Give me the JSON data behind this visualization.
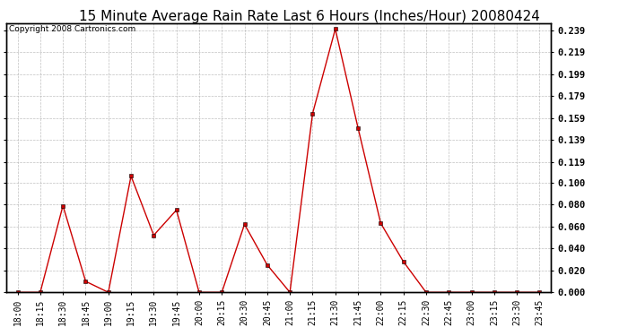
{
  "title": "15 Minute Average Rain Rate Last 6 Hours (Inches/Hour) 20080424",
  "copyright": "Copyright 2008 Cartronics.com",
  "x_labels": [
    "18:00",
    "18:15",
    "18:30",
    "18:45",
    "19:00",
    "19:15",
    "19:30",
    "19:45",
    "20:00",
    "20:15",
    "20:30",
    "20:45",
    "21:00",
    "21:15",
    "21:30",
    "21:45",
    "22:00",
    "22:15",
    "22:30",
    "22:45",
    "23:00",
    "23:15",
    "23:30",
    "23:45"
  ],
  "y_values": [
    0.0,
    0.0,
    0.079,
    0.01,
    0.0,
    0.106,
    0.052,
    0.075,
    0.0,
    0.0,
    0.062,
    0.025,
    0.0,
    0.163,
    0.24,
    0.15,
    0.063,
    0.028,
    0.0,
    0.0,
    0.0,
    0.0,
    0.0,
    0.0
  ],
  "line_color": "#cc0000",
  "marker": "s",
  "marker_size": 3,
  "bg_color": "#ffffff",
  "grid_color": "#b0b0b0",
  "y_ticks": [
    0.0,
    0.02,
    0.04,
    0.06,
    0.08,
    0.1,
    0.119,
    0.139,
    0.159,
    0.179,
    0.199,
    0.219,
    0.239
  ],
  "ylim": [
    0.0,
    0.245
  ],
  "title_fontsize": 11,
  "copyright_fontsize": 6.5,
  "tick_fontsize": 7,
  "ytick_fontsize": 7.5
}
